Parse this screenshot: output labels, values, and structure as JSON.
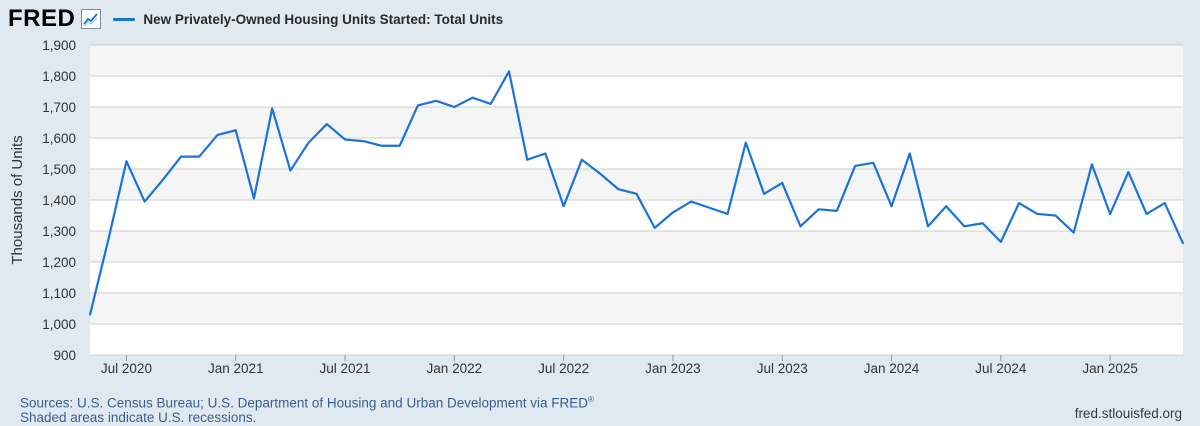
{
  "brand": {
    "logo_text": "FRED",
    "logo_mark_icon": "line-chart-icon"
  },
  "legend": {
    "label": "New Privately-Owned Housing Units Started: Total Units",
    "color": "#1a74d8"
  },
  "footer": {
    "sources": "Sources: U.S. Census Bureau; U.S. Department of Housing and Urban Development via FRED",
    "registered": "®",
    "note": "Shaded areas indicate U.S. recessions.",
    "site": "fred.stlouisfed.org"
  },
  "chart_data": {
    "type": "line",
    "title": "",
    "ylabel": "Thousands of Units",
    "xlabel": "",
    "ylim": [
      900,
      1900
    ],
    "yticks": [
      900,
      1000,
      1100,
      1200,
      1300,
      1400,
      1500,
      1600,
      1700,
      1800,
      1900
    ],
    "ytick_labels": [
      "900",
      "1,000",
      "1,100",
      "1,200",
      "1,300",
      "1,400",
      "1,500",
      "1,600",
      "1,700",
      "1,800",
      "1,900"
    ],
    "xlim": [
      "2020-05",
      "2025-05"
    ],
    "xticks": [
      "2020-07",
      "2021-01",
      "2021-07",
      "2022-01",
      "2022-07",
      "2023-01",
      "2023-07",
      "2024-01",
      "2024-07",
      "2025-01"
    ],
    "xtick_labels": [
      "Jul 2020",
      "Jan 2021",
      "Jul 2021",
      "Jan 2022",
      "Jul 2022",
      "Jan 2023",
      "Jul 2023",
      "Jan 2024",
      "Jul 2024",
      "Jan 2025"
    ],
    "grid": true,
    "line_color": "#1a74d8",
    "series": [
      {
        "name": "New Privately-Owned Housing Units Started: Total Units",
        "x": [
          "2020-05",
          "2020-06",
          "2020-07",
          "2020-08",
          "2020-09",
          "2020-10",
          "2020-11",
          "2020-12",
          "2021-01",
          "2021-02",
          "2021-03",
          "2021-04",
          "2021-05",
          "2021-06",
          "2021-07",
          "2021-08",
          "2021-09",
          "2021-10",
          "2021-11",
          "2021-12",
          "2022-01",
          "2022-02",
          "2022-03",
          "2022-04",
          "2022-05",
          "2022-06",
          "2022-07",
          "2022-08",
          "2022-09",
          "2022-10",
          "2022-11",
          "2022-12",
          "2023-01",
          "2023-02",
          "2023-03",
          "2023-04",
          "2023-05",
          "2023-06",
          "2023-07",
          "2023-08",
          "2023-09",
          "2023-10",
          "2023-11",
          "2023-12",
          "2024-01",
          "2024-02",
          "2024-03",
          "2024-04",
          "2024-05",
          "2024-06",
          "2024-07",
          "2024-08",
          "2024-09",
          "2024-10",
          "2024-11",
          "2024-12",
          "2025-01",
          "2025-02",
          "2025-03",
          "2025-04",
          "2025-05"
        ],
        "values": [
          1030,
          1270,
          1525,
          1395,
          1465,
          1540,
          1540,
          1610,
          1625,
          1405,
          1695,
          1495,
          1585,
          1645,
          1595,
          1590,
          1575,
          1575,
          1705,
          1720,
          1700,
          1730,
          1710,
          1815,
          1530,
          1550,
          1380,
          1530,
          1485,
          1435,
          1420,
          1310,
          1360,
          1395,
          1375,
          1355,
          1585,
          1420,
          1455,
          1315,
          1370,
          1365,
          1510,
          1520,
          1380,
          1550,
          1315,
          1380,
          1315,
          1325,
          1265,
          1390,
          1355,
          1350,
          1295,
          1515,
          1355,
          1490,
          1355,
          1390,
          1260
        ]
      }
    ]
  }
}
